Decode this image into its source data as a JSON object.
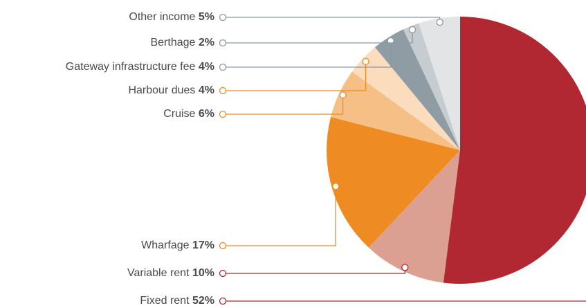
{
  "chart_data": {
    "type": "pie",
    "categories": [
      "Fixed rent",
      "Variable rent",
      "Wharfage",
      "Cruise",
      "Harbour dues",
      "Gateway infrastructure fee",
      "Berthage",
      "Other income"
    ],
    "values": [
      52,
      10,
      17,
      6,
      4,
      4,
      2,
      5
    ],
    "value_labels": [
      "52%",
      "10%",
      "17%",
      "6%",
      "4%",
      "4%",
      "2%",
      "5%"
    ],
    "colors": [
      "#b12732",
      "#dca093",
      "#ee8b22",
      "#f6bf86",
      "#fbdcbd",
      "#8f9ca3",
      "#c7ccd0",
      "#e2e4e6"
    ]
  }
}
